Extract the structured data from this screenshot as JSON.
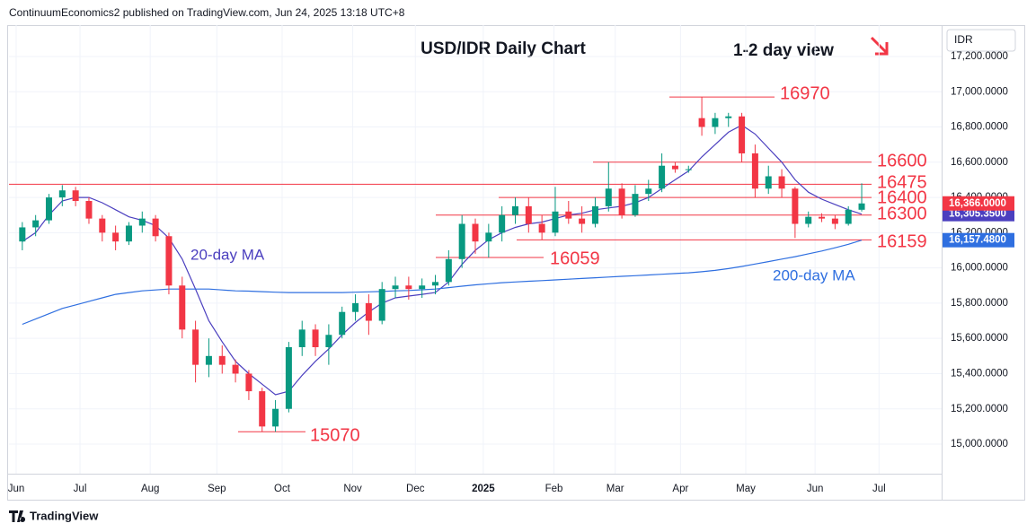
{
  "chart_data": {
    "type": "candlestick",
    "header": "ContinuumEconomics2 published on TradingView.com, Jun 24, 2025 13:18 UTC+8",
    "title": "USD/IDR Daily Chart",
    "subtitle": "1-2 day view",
    "currency": "IDR",
    "footer": "TradingView",
    "xlim": [
      0,
      70
    ],
    "xticks": [
      {
        "value": 0.54,
        "label": "Jun"
      },
      {
        "value": 5.33,
        "label": "Jul"
      },
      {
        "value": 10.6,
        "label": "Aug"
      },
      {
        "value": 15.6,
        "label": "Sep"
      },
      {
        "value": 20.5,
        "label": "Oct"
      },
      {
        "value": 25.8,
        "label": "Nov"
      },
      {
        "value": 30.5,
        "label": "Dec"
      },
      {
        "value": 35.6,
        "label": "2025"
      },
      {
        "value": 40.9,
        "label": "Feb"
      },
      {
        "value": 45.5,
        "label": "Mar"
      },
      {
        "value": 50.4,
        "label": "Apr"
      },
      {
        "value": 55.3,
        "label": "May"
      },
      {
        "value": 60.5,
        "label": "Jun"
      },
      {
        "value": 65.3,
        "label": "Jul"
      }
    ],
    "ylim": [
      14832,
      17378
    ],
    "yticks": [
      {
        "value": 15000,
        "label": "15,000.0000"
      },
      {
        "value": 15200,
        "label": "15,200.0000"
      },
      {
        "value": 15400,
        "label": "15,400.0000"
      },
      {
        "value": 15600,
        "label": "15,600.0000"
      },
      {
        "value": 15800,
        "label": "15,800.0000"
      },
      {
        "value": 16000,
        "label": "16,000.0000"
      },
      {
        "value": 16200,
        "label": "16,200.0000"
      },
      {
        "value": 16400,
        "label": "16,400.0000"
      },
      {
        "value": 16600,
        "label": "16,600.0000"
      },
      {
        "value": 16800,
        "label": "16,800.0000"
      },
      {
        "value": 17000,
        "label": "17,000.0000"
      },
      {
        "value": 17200,
        "label": "17,200.0000"
      }
    ],
    "grid": true,
    "candles": {
      "up_color": "#089981",
      "down_color": "#f23645",
      "x": [
        1,
        2,
        3,
        4,
        5,
        6,
        7,
        8,
        9,
        10,
        11,
        12,
        13,
        14,
        15,
        16,
        17,
        18,
        19,
        20,
        21,
        22,
        23,
        24,
        25,
        26,
        27,
        28,
        29,
        30,
        31,
        32,
        33,
        34,
        35,
        36,
        37,
        38,
        39,
        40,
        41,
        42,
        43,
        44,
        45,
        46,
        47,
        48,
        49,
        50,
        51,
        52,
        53,
        54,
        55,
        56,
        57,
        58,
        59,
        60,
        61,
        62,
        63,
        64
      ],
      "open": [
        16150,
        16230,
        16270,
        16400,
        16440,
        16380,
        16280,
        16200,
        16150,
        16240,
        16280,
        16180,
        15900,
        15650,
        15450,
        15500,
        15450,
        15400,
        15300,
        15100,
        15200,
        15550,
        15650,
        15550,
        15620,
        15750,
        15800,
        15700,
        15880,
        15900,
        15880,
        15900,
        15920,
        16050,
        16250,
        16150,
        16200,
        16300,
        16350,
        16250,
        16200,
        16320,
        16280,
        16250,
        16350,
        16450,
        16300,
        16420,
        16450,
        16580,
        16560,
        16850,
        16800,
        16850,
        16860,
        16650,
        16450,
        16520,
        16450,
        16250,
        16290,
        16280,
        16250,
        16330
      ],
      "high": [
        16260,
        16300,
        16420,
        16470,
        16460,
        16400,
        16300,
        16240,
        16260,
        16320,
        16300,
        16200,
        15950,
        15700,
        15600,
        15560,
        15480,
        15420,
        15320,
        15250,
        15580,
        15700,
        15680,
        15680,
        15780,
        15850,
        15850,
        15920,
        15950,
        15950,
        15940,
        15960,
        16100,
        16300,
        16280,
        16250,
        16350,
        16400,
        16400,
        16300,
        16460,
        16380,
        16350,
        16400,
        16600,
        16480,
        16470,
        16500,
        16650,
        16600,
        16580,
        16970,
        16880,
        16880,
        16880,
        16700,
        16580,
        16560,
        16460,
        16320,
        16310,
        16300,
        16350,
        16480
      ],
      "low": [
        16100,
        16180,
        16250,
        16350,
        16350,
        16250,
        16150,
        16100,
        16130,
        16200,
        16150,
        15850,
        15600,
        15350,
        15380,
        15400,
        15350,
        15250,
        15070,
        15070,
        15180,
        15500,
        15500,
        15450,
        15600,
        15700,
        15620,
        15680,
        15830,
        15820,
        15830,
        15850,
        15900,
        16000,
        16080,
        16059,
        16150,
        16250,
        16200,
        16159,
        16180,
        16250,
        16200,
        16230,
        16320,
        16280,
        16290,
        16380,
        16430,
        16540,
        16540,
        16750,
        16760,
        16800,
        16600,
        16400,
        16420,
        16400,
        16170,
        16230,
        16260,
        16220,
        16240,
        16320
      ],
      "close": [
        16230,
        16270,
        16400,
        16440,
        16380,
        16280,
        16200,
        16150,
        16240,
        16280,
        16180,
        15900,
        15650,
        15450,
        15500,
        15450,
        15400,
        15300,
        15100,
        15200,
        15550,
        15650,
        15550,
        15620,
        15750,
        15800,
        15700,
        15880,
        15900,
        15880,
        15900,
        15920,
        16050,
        16250,
        16150,
        16200,
        16300,
        16350,
        16250,
        16200,
        16320,
        16280,
        16250,
        16350,
        16450,
        16300,
        16420,
        16450,
        16580,
        16560,
        16560,
        16800,
        16850,
        16860,
        16650,
        16450,
        16520,
        16450,
        16250,
        16290,
        16280,
        16250,
        16330,
        16366
      ],
      "last_label": "16,366.0000"
    },
    "series": [
      {
        "name": "20-day MA",
        "color": "#4b3fbf",
        "last_label": "16,305.3500",
        "values": [
          16150,
          16200,
          16300,
          16380,
          16400,
          16400,
          16370,
          16330,
          16290,
          16270,
          16240,
          16170,
          16050,
          15880,
          15700,
          15580,
          15470,
          15400,
          15340,
          15280,
          15300,
          15390,
          15470,
          15540,
          15620,
          15690,
          15750,
          15800,
          15830,
          15840,
          15850,
          15860,
          15920,
          16020,
          16100,
          16160,
          16200,
          16230,
          16250,
          16260,
          16280,
          16300,
          16310,
          16330,
          16340,
          16350,
          16370,
          16400,
          16450,
          16500,
          16550,
          16630,
          16700,
          16770,
          16810,
          16760,
          16680,
          16600,
          16500,
          16430,
          16390,
          16360,
          16330,
          16305.35
        ]
      },
      {
        "name": "200-day MA",
        "color": "#2f6fe0",
        "last_label": "16,157.4800",
        "values": [
          15680,
          15710,
          15740,
          15770,
          15790,
          15810,
          15830,
          15850,
          15860,
          15870,
          15875,
          15880,
          15880,
          15880,
          15880,
          15875,
          15870,
          15868,
          15865,
          15862,
          15860,
          15860,
          15860,
          15860,
          15860,
          15862,
          15864,
          15866,
          15870,
          15872,
          15876,
          15880,
          15888,
          15896,
          15904,
          15910,
          15916,
          15920,
          15924,
          15928,
          15932,
          15936,
          15940,
          15944,
          15948,
          15952,
          15956,
          15960,
          15964,
          15968,
          15972,
          15978,
          15986,
          15996,
          16008,
          16022,
          16036,
          16050,
          16064,
          16080,
          16096,
          16114,
          16134,
          16157.48
        ]
      }
    ],
    "levels": {
      "color": "#f23645",
      "values": [
        16970,
        16600,
        16475,
        16400,
        16300,
        16159,
        16059,
        15070
      ]
    }
  }
}
